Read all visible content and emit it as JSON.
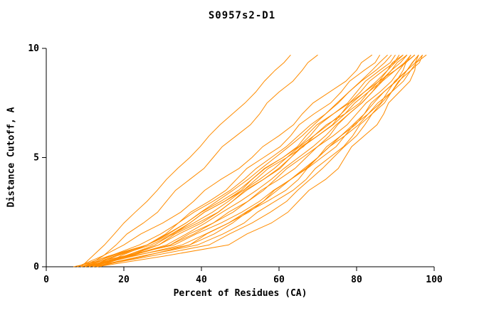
{
  "chart_data": {
    "type": "line",
    "title": "S0957s2-D1",
    "xlabel": "Percent of Residues (CA)",
    "ylabel": "Distance Cutoff, A",
    "xlim": [
      0,
      100
    ],
    "ylim": [
      0,
      10
    ],
    "xticks": [
      0,
      20,
      40,
      60,
      80,
      100
    ],
    "yticks": [
      0,
      5,
      10
    ],
    "grid": false,
    "legend": "none",
    "line_color": "#ff8c00",
    "axis_color": "#000000",
    "y_grid": [
      0,
      1,
      2,
      3,
      4,
      5,
      6,
      7,
      8,
      9,
      9.7
    ],
    "series": [
      {
        "x": [
          9,
          15,
          20,
          26,
          31,
          37,
          42,
          48,
          54,
          59,
          63
        ]
      },
      {
        "x": [
          10,
          18,
          25,
          31,
          37,
          43,
          49,
          55,
          60,
          66,
          70
        ]
      },
      {
        "x": [
          8,
          20,
          30,
          38,
          45,
          53,
          60,
          66,
          73,
          80,
          84
        ]
      },
      {
        "x": [
          10,
          26,
          36,
          44,
          52,
          59,
          66,
          72,
          78,
          84,
          88
        ]
      },
      {
        "x": [
          11,
          27,
          37,
          46,
          53,
          61,
          67,
          74,
          80,
          86,
          90
        ]
      },
      {
        "x": [
          9,
          26,
          36,
          45,
          53,
          61,
          68,
          74,
          81,
          87,
          91
        ]
      },
      {
        "x": [
          12,
          28,
          38,
          47,
          55,
          62,
          69,
          76,
          82,
          88,
          92
        ]
      },
      {
        "x": [
          10,
          29,
          39,
          48,
          56,
          63,
          70,
          76,
          82,
          88,
          92
        ]
      },
      {
        "x": [
          13,
          29,
          40,
          48,
          56,
          63,
          70,
          77,
          83,
          89,
          93
        ]
      },
      {
        "x": [
          11,
          32,
          43,
          52,
          59,
          66,
          73,
          78,
          84,
          89,
          93
        ]
      },
      {
        "x": [
          8,
          26,
          37,
          46,
          54,
          62,
          69,
          77,
          83,
          90,
          94
        ]
      },
      {
        "x": [
          12,
          31,
          41,
          50,
          58,
          65,
          72,
          78,
          84,
          90,
          94
        ]
      },
      {
        "x": [
          10,
          32,
          43,
          52,
          60,
          67,
          74,
          80,
          86,
          91,
          95
        ]
      },
      {
        "x": [
          13,
          37,
          47,
          56,
          63,
          70,
          76,
          82,
          87,
          92,
          95
        ]
      },
      {
        "x": [
          11,
          35,
          47,
          56,
          63,
          70,
          76,
          82,
          87,
          93,
          96
        ]
      },
      {
        "x": [
          9,
          37,
          48,
          57,
          65,
          71,
          77,
          83,
          88,
          93,
          96
        ]
      },
      {
        "x": [
          12,
          39,
          51,
          59,
          67,
          73,
          79,
          84,
          89,
          94,
          97
        ]
      },
      {
        "x": [
          12,
          42,
          53,
          62,
          68,
          74,
          80,
          84,
          89,
          93,
          96
        ]
      },
      {
        "x": [
          13,
          47,
          58,
          65,
          72,
          77,
          82,
          87,
          91,
          95,
          97
        ]
      },
      {
        "x": [
          7,
          33,
          45,
          55,
          63,
          70,
          77,
          83,
          89,
          94,
          98
        ]
      },
      {
        "x": [
          10,
          24,
          34,
          43,
          51,
          58,
          65,
          72,
          78,
          85,
          89
        ]
      },
      {
        "x": [
          14,
          26,
          34,
          42,
          49,
          56,
          63,
          69,
          76,
          82,
          86
        ]
      }
    ]
  }
}
